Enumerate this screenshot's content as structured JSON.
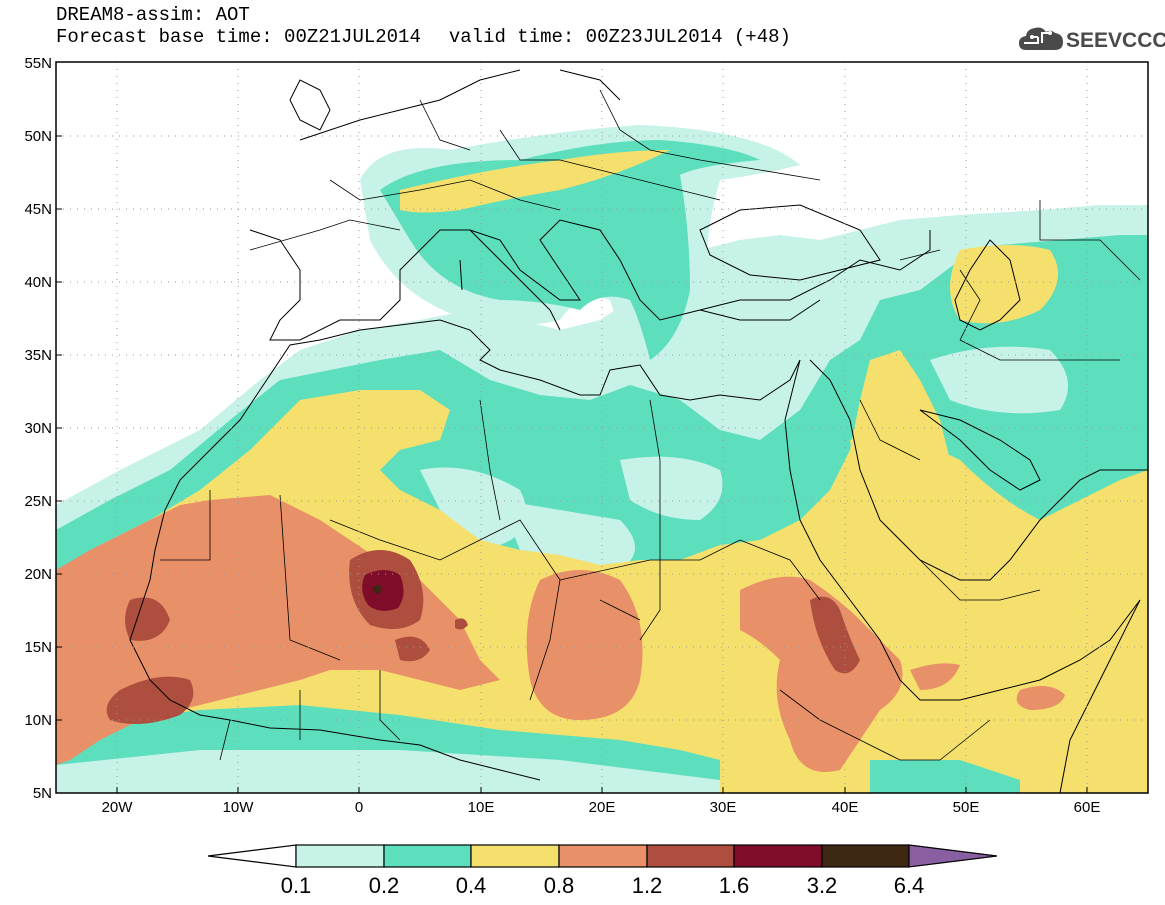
{
  "header": {
    "title": "DREAM8-assim: AOT",
    "base_time": "Forecast base time: 00Z21JUL2014",
    "valid_time": "valid time: 00Z23JUL2014 (+48)"
  },
  "logo": {
    "text": "SEEVCCC",
    "icon": "cloud-icon"
  },
  "map": {
    "variable": "AOT",
    "projection": "lat-lon",
    "lon_range": [
      -25,
      65
    ],
    "lat_range": [
      5,
      55
    ],
    "lat_ticks": [
      "5N",
      "10N",
      "15N",
      "20N",
      "25N",
      "30N",
      "35N",
      "40N",
      "45N",
      "50N",
      "55N"
    ],
    "lon_ticks": [
      "20W",
      "10W",
      "0",
      "10E",
      "20E",
      "30E",
      "40E",
      "50E",
      "60E"
    ]
  },
  "colorbar": {
    "levels": [
      "0.1",
      "0.2",
      "0.4",
      "0.8",
      "1.2",
      "1.6",
      "3.2",
      "6.4"
    ],
    "colors": [
      "#ffffff",
      "#c6f2e8",
      "#5ddfbd",
      "#f5e06e",
      "#e89067",
      "#ad4e3f",
      "#7f0d2a",
      "#3e2713",
      "#8a5fa2"
    ]
  }
}
